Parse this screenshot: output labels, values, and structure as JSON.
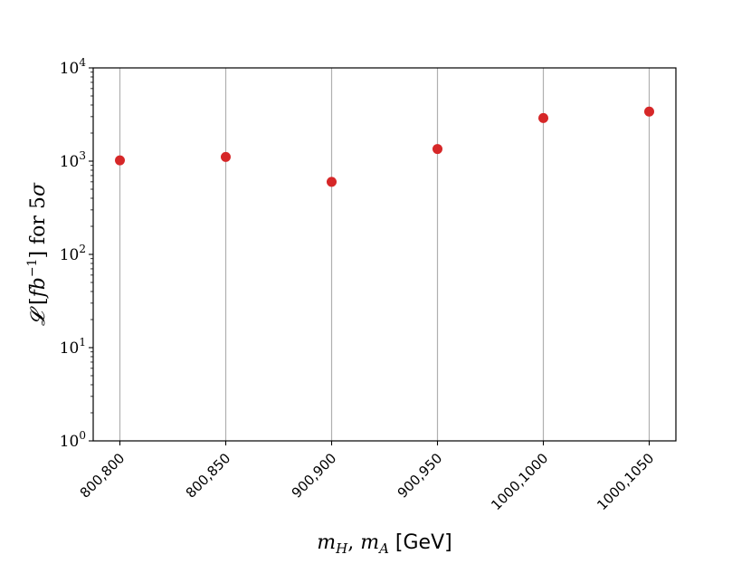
{
  "chart_data": {
    "type": "scatter",
    "categories": [
      "800,800",
      "800,850",
      "900,900",
      "900,950",
      "1000,1000",
      "1000,1050"
    ],
    "values": [
      1020,
      1110,
      600,
      1350,
      2900,
      3400
    ],
    "yscale": "log",
    "ylim": [
      1,
      10000
    ],
    "yticks": [
      {
        "base": "10",
        "exp": "0"
      },
      {
        "base": "10",
        "exp": "1"
      },
      {
        "base": "10",
        "exp": "2"
      },
      {
        "base": "10",
        "exp": "3"
      },
      {
        "base": "10",
        "exp": "4"
      }
    ],
    "xlabel": {
      "math": "m",
      "sub1": "H",
      "sep": ", ",
      "math2": "m",
      "sub2": "A",
      "unit": " [GeV]"
    },
    "ylabel": {
      "script": "𝓛",
      "open": " [",
      "fb": "fb",
      "sup": "−1",
      "close": "] for 5",
      "sigma": "σ"
    },
    "grid": "x",
    "marker_color": "#d62728"
  }
}
